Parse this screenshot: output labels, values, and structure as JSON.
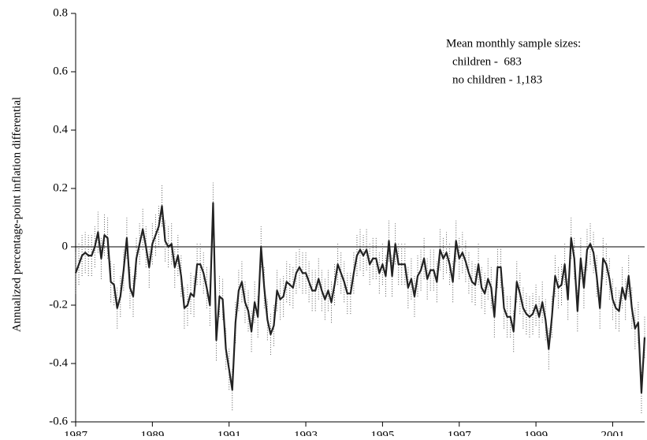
{
  "chart_data": {
    "type": "line",
    "y_label": "Annualized percentage-point inflation differential",
    "annotations": [
      "Mean monthly sample sizes:",
      "children -  683",
      "no children - 1,183"
    ],
    "categories": [
      "1987",
      null,
      null,
      null,
      null,
      null,
      null,
      null,
      null,
      null,
      null,
      null,
      null,
      null,
      null,
      null,
      null,
      null,
      null,
      null,
      null,
      null,
      null,
      null,
      "1989",
      null,
      null,
      null,
      null,
      null,
      null,
      null,
      null,
      null,
      null,
      null,
      null,
      null,
      null,
      null,
      null,
      null,
      null,
      null,
      null,
      null,
      null,
      null,
      "1991",
      null,
      null,
      null,
      null,
      null,
      null,
      null,
      null,
      null,
      null,
      null,
      null,
      null,
      null,
      null,
      null,
      null,
      null,
      null,
      null,
      null,
      null,
      null,
      "1993",
      null,
      null,
      null,
      null,
      null,
      null,
      null,
      null,
      null,
      null,
      null,
      null,
      null,
      null,
      null,
      null,
      null,
      null,
      null,
      null,
      null,
      null,
      null,
      "1995",
      null,
      null,
      null,
      null,
      null,
      null,
      null,
      null,
      null,
      null,
      null,
      null,
      null,
      null,
      null,
      null,
      null,
      null,
      null,
      null,
      null,
      null,
      null,
      "1997",
      null,
      null,
      null,
      null,
      null,
      null,
      null,
      null,
      null,
      null,
      null,
      null,
      null,
      null,
      null,
      null,
      null,
      null,
      null,
      null,
      null,
      null,
      null,
      "1999",
      null,
      null,
      null,
      null,
      null,
      null,
      null,
      null,
      null,
      null,
      null,
      null,
      null,
      null,
      null,
      null,
      null,
      null,
      null,
      null,
      null,
      null,
      null,
      "2001",
      null,
      null,
      null,
      null,
      null,
      null,
      null,
      null,
      null,
      null
    ],
    "values": [
      -0.09,
      -0.06,
      -0.03,
      -0.02,
      -0.03,
      -0.03,
      0.0,
      0.05,
      -0.04,
      0.04,
      0.03,
      -0.12,
      -0.13,
      -0.21,
      -0.17,
      -0.08,
      0.03,
      -0.14,
      -0.17,
      -0.04,
      0.01,
      0.06,
      0.0,
      -0.07,
      0.01,
      0.04,
      0.07,
      0.14,
      0.02,
      0.0,
      0.01,
      -0.07,
      -0.03,
      -0.1,
      -0.21,
      -0.2,
      -0.16,
      -0.17,
      -0.06,
      -0.06,
      -0.09,
      -0.14,
      -0.2,
      0.15,
      -0.32,
      -0.17,
      -0.18,
      -0.35,
      -0.42,
      -0.49,
      -0.26,
      -0.15,
      -0.12,
      -0.19,
      -0.22,
      -0.29,
      -0.19,
      -0.24,
      0.0,
      -0.14,
      -0.25,
      -0.3,
      -0.27,
      -0.15,
      -0.18,
      -0.17,
      -0.12,
      -0.13,
      -0.14,
      -0.09,
      -0.07,
      -0.09,
      -0.09,
      -0.12,
      -0.15,
      -0.15,
      -0.11,
      -0.15,
      -0.18,
      -0.15,
      -0.19,
      -0.13,
      -0.06,
      -0.09,
      -0.12,
      -0.16,
      -0.16,
      -0.09,
      -0.03,
      -0.01,
      -0.03,
      -0.01,
      -0.06,
      -0.04,
      -0.04,
      -0.09,
      -0.06,
      -0.1,
      0.02,
      -0.1,
      0.01,
      -0.06,
      -0.06,
      -0.06,
      -0.14,
      -0.11,
      -0.17,
      -0.1,
      -0.08,
      -0.04,
      -0.11,
      -0.08,
      -0.08,
      -0.12,
      -0.01,
      -0.04,
      -0.02,
      -0.06,
      -0.12,
      0.02,
      -0.04,
      -0.02,
      -0.05,
      -0.09,
      -0.12,
      -0.13,
      -0.06,
      -0.14,
      -0.16,
      -0.11,
      -0.14,
      -0.24,
      -0.07,
      -0.07,
      -0.21,
      -0.24,
      -0.24,
      -0.29,
      -0.12,
      -0.16,
      -0.21,
      -0.23,
      -0.24,
      -0.23,
      -0.2,
      -0.24,
      -0.19,
      -0.25,
      -0.35,
      -0.24,
      -0.1,
      -0.14,
      -0.13,
      -0.06,
      -0.18,
      0.03,
      -0.04,
      -0.22,
      -0.04,
      -0.14,
      -0.01,
      0.01,
      -0.02,
      -0.1,
      -0.21,
      -0.04,
      -0.06,
      -0.11,
      -0.18,
      -0.21,
      -0.22,
      -0.14,
      -0.18,
      -0.1,
      -0.21,
      -0.28,
      -0.26,
      -0.5,
      -0.31
    ],
    "error": 0.07,
    "color": "#222222",
    "band_color": "#555555",
    "ylim": [
      -0.6,
      0.8
    ],
    "yticks": [
      -0.6,
      -0.4,
      -0.2,
      0,
      0.2,
      0.4,
      0.6,
      0.8
    ]
  }
}
